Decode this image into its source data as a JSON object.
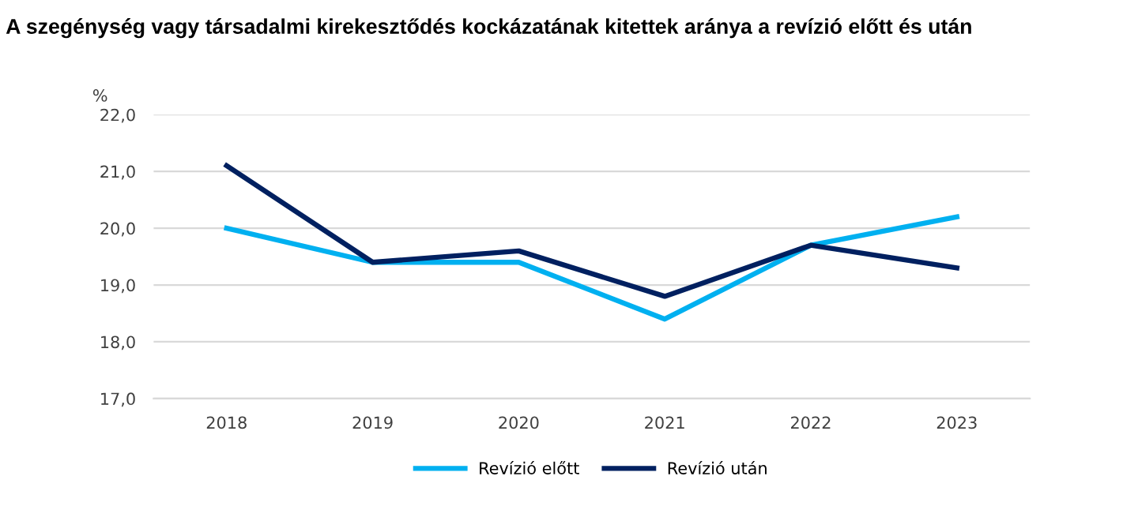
{
  "chart_data": {
    "type": "line",
    "title": "A szegénység vagy társadalmi kirekesztődés kockázatának kitettek aránya a revízió előtt és után",
    "ylabel": "%",
    "categories": [
      "2018",
      "2019",
      "2020",
      "2021",
      "2022",
      "2023"
    ],
    "series": [
      {
        "name": "Revízió előtt",
        "color": "#00b0f0",
        "values": [
          20.0,
          19.4,
          19.4,
          18.4,
          19.7,
          20.2
        ]
      },
      {
        "name": "Revízió után",
        "color": "#002060",
        "values": [
          21.1,
          19.4,
          19.6,
          18.8,
          19.7,
          19.3
        ]
      }
    ],
    "ylim": [
      17,
      22
    ],
    "yticks": [
      {
        "value": 17,
        "label": "17,0"
      },
      {
        "value": 18,
        "label": "18,0"
      },
      {
        "value": 19,
        "label": "19,0"
      },
      {
        "value": 20,
        "label": "20,0"
      },
      {
        "value": 21,
        "label": "21,0"
      },
      {
        "value": 22,
        "label": "22,0"
      }
    ],
    "grid": "y",
    "legend": "bottom",
    "marker": "none",
    "line_style": "solid"
  }
}
